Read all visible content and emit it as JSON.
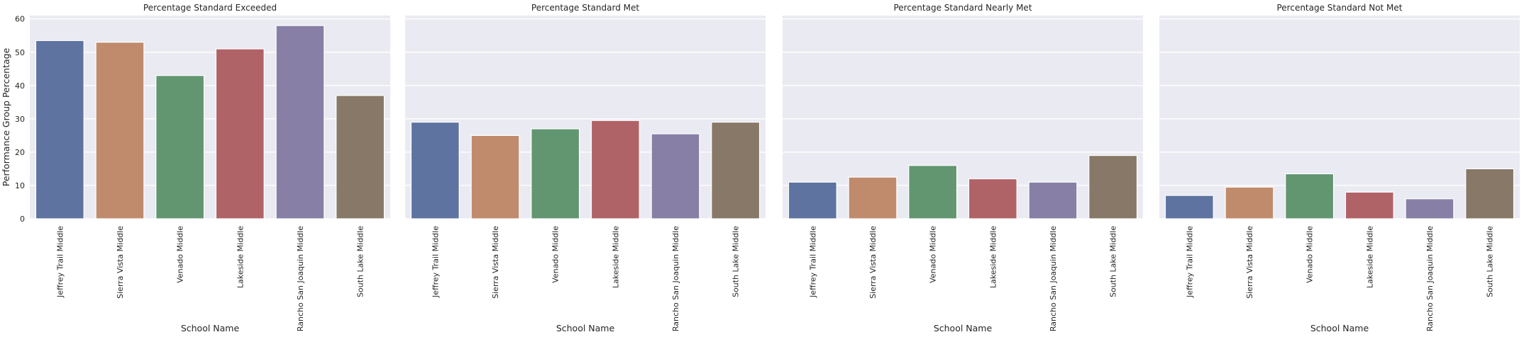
{
  "chart_data": {
    "type": "bar",
    "layout": "facet-grid",
    "xlabel": "School Name",
    "ylabel": "Performance Group Percentage",
    "ylim": [
      0,
      61
    ],
    "yticks": [
      0,
      10,
      20,
      30,
      40,
      50,
      60
    ],
    "grid": true,
    "categories": [
      "Jeffrey Trail Middle",
      "Sierra Vista Middle",
      "Venado Middle",
      "Lakeside Middle",
      "Rancho San Joaquin Middle",
      "South Lake Middle"
    ],
    "colors": [
      "#5e73a0",
      "#c08b6c",
      "#629670",
      "#b06367",
      "#887fa6",
      "#877868"
    ],
    "facets": [
      {
        "title": "Percentage Standard Exceeded",
        "values": [
          53.5,
          53,
          43,
          51,
          58,
          37
        ]
      },
      {
        "title": "Percentage Standard Met",
        "values": [
          29,
          25,
          27,
          29.5,
          25.5,
          29
        ]
      },
      {
        "title": "Percentage Standard Nearly Met",
        "values": [
          11,
          12.5,
          16,
          12,
          11,
          19
        ]
      },
      {
        "title": "Percentage Standard Not Met",
        "values": [
          7,
          9.5,
          13.5,
          8,
          6,
          15
        ]
      }
    ]
  }
}
